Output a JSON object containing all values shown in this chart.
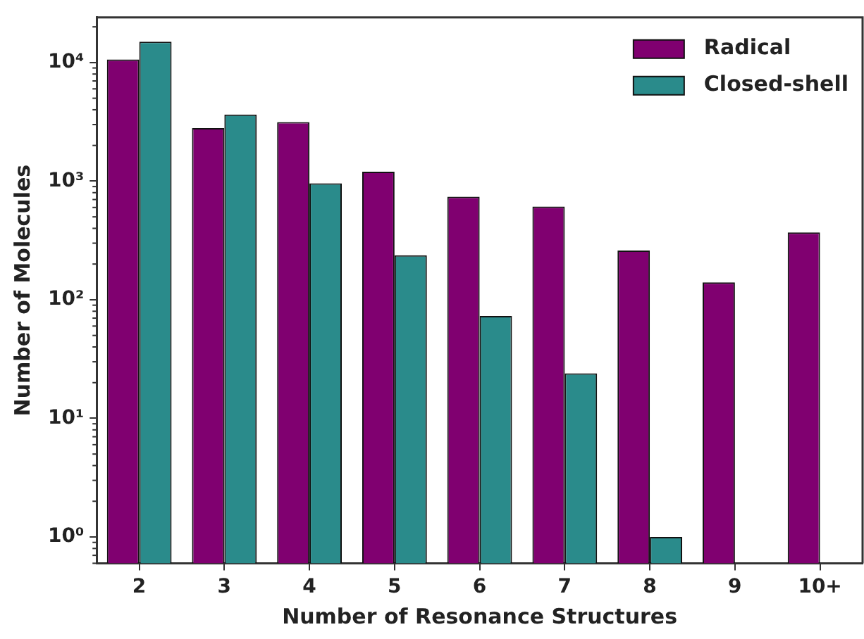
{
  "chart_data": {
    "type": "bar",
    "xlabel": "Number of Resonance Structures",
    "ylabel": "Number of Molecules",
    "categories": [
      "2",
      "3",
      "4",
      "5",
      "6",
      "7",
      "8",
      "9",
      "10+"
    ],
    "series": [
      {
        "name": "Radical",
        "color": "#800070",
        "values": [
          10600,
          2800,
          3150,
          1200,
          740,
          610,
          260,
          140,
          370
        ]
      },
      {
        "name": "Closed-shell",
        "color": "#2a8b8b",
        "values": [
          15000,
          3650,
          960,
          237,
          73,
          24,
          1,
          null,
          null
        ]
      }
    ],
    "log": "y",
    "ylim": [
      0.62,
      24000
    ],
    "yticks": [
      {
        "value": 1,
        "label": "10⁰"
      },
      {
        "value": 10,
        "label": "10¹"
      },
      {
        "value": 100,
        "label": "10²"
      },
      {
        "value": 1000,
        "label": "10³"
      },
      {
        "value": 10000,
        "label": "10⁴"
      }
    ],
    "grid": false,
    "legend": "top right"
  }
}
